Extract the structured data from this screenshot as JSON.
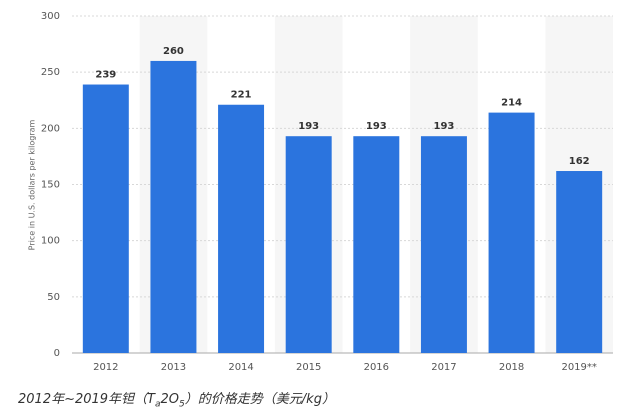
{
  "chart_data": {
    "type": "bar",
    "y_label": "Price in U.S. dollars per kilogram",
    "categories": [
      "2012",
      "2013",
      "2014",
      "2015",
      "2016",
      "2017",
      "2018",
      "2019**"
    ],
    "values": [
      239,
      260,
      221,
      193,
      193,
      193,
      214,
      162
    ],
    "color": "#2b74de",
    "ylim": [
      0,
      300
    ],
    "yticks": [
      0,
      50,
      100,
      150,
      200,
      250,
      300
    ],
    "grid": true,
    "caption_parts": [
      "2012年~2019年钽（T",
      "a",
      "2O",
      "5",
      "）的价格走势（美元/kg）"
    ]
  }
}
